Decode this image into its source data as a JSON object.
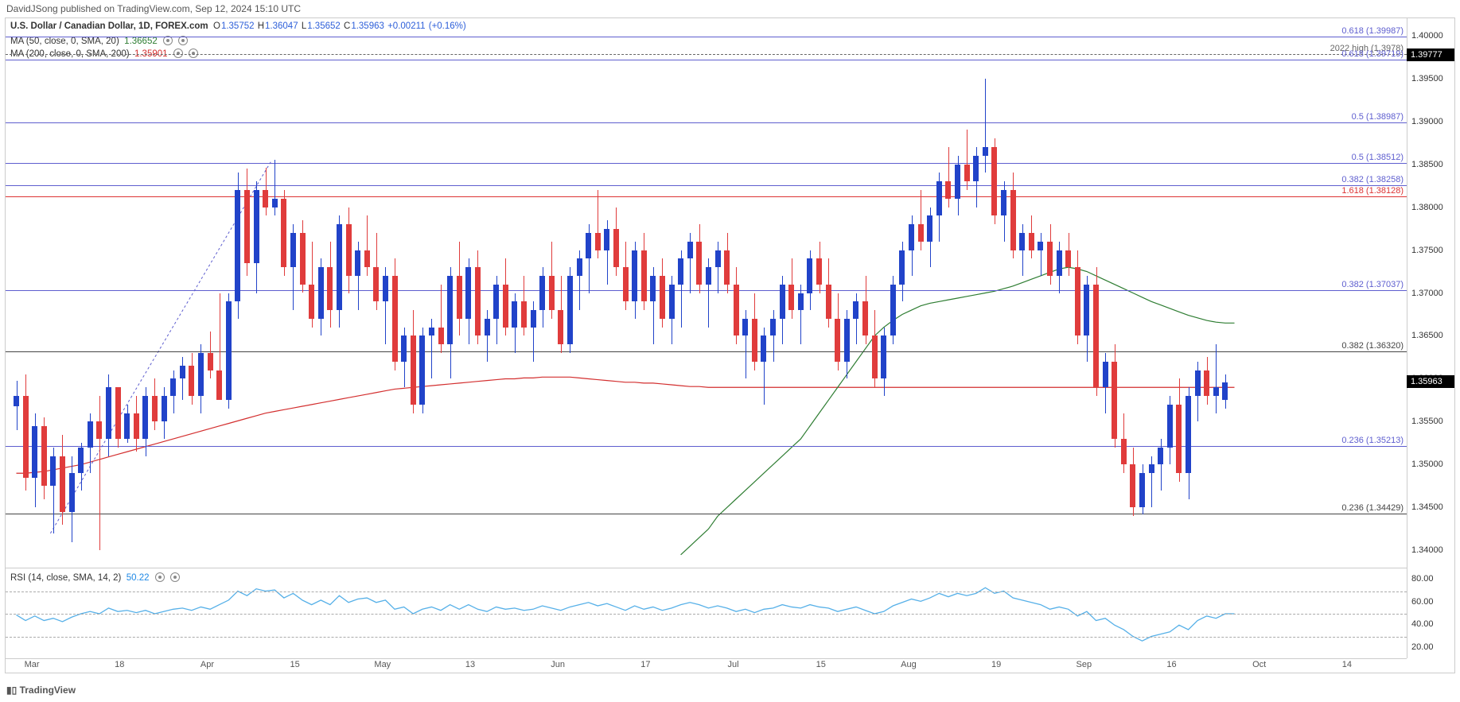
{
  "header": "DavidJSong published on TradingView.com, Sep 12, 2024 15:10 UTC",
  "footer": "TradingView",
  "symbol_line": {
    "name": "U.S. Dollar / Canadian Dollar, 1D, FOREX.com",
    "O_lbl": "O",
    "O": "1.35752",
    "H_lbl": "H",
    "H": "1.36047",
    "L_lbl": "L",
    "L": "1.35652",
    "C_lbl": "C",
    "C": "1.35963",
    "chg": "+0.00211",
    "chg_pct": "(+0.16%)",
    "ohlc_color": "#2d5fd9"
  },
  "ma50": {
    "text": "MA (50, close, 0, SMA, 20)",
    "val": "1.36652",
    "color": "#2e7d32"
  },
  "ma200": {
    "text": "MA (200, close, 0, SMA, 200)",
    "val": "1.35901",
    "color": "#d32f2f"
  },
  "rsi_legend": {
    "text": "RSI (14, close, SMA, 14, 2)",
    "val": "50.22",
    "color": "#1e88e5"
  },
  "price_chart": {
    "y_min": 1.338,
    "y_max": 1.402,
    "y_ticks": [
      "1.40000",
      "1.39500",
      "1.39000",
      "1.38500",
      "1.38000",
      "1.37500",
      "1.37000",
      "1.36500",
      "1.36000",
      "1.35500",
      "1.35000",
      "1.34500",
      "1.34000"
    ],
    "x_ticks": [
      "Mar",
      "18",
      "Apr",
      "15",
      "May",
      "13",
      "Jun",
      "17",
      "Jul",
      "15",
      "Aug",
      "19",
      "Sep",
      "16",
      "Oct",
      "14"
    ],
    "h_lines": [
      {
        "v": 1.39987,
        "c": "#5e5ecf",
        "lbl": "0.618 (1.39987)",
        "lc": "#5e5ecf"
      },
      {
        "v": 1.3978,
        "c": "#666",
        "dash": true,
        "lbl": "2022 high (1.3978)",
        "lc": "#666"
      },
      {
        "v": 1.39719,
        "c": "#5e5ecf",
        "lbl": "0.618 (1.39719)",
        "lc": "#5e5ecf"
      },
      {
        "v": 1.38987,
        "c": "#5e5ecf",
        "lbl": "0.5 (1.38987)",
        "lc": "#5e5ecf"
      },
      {
        "v": 1.38512,
        "c": "#5e5ecf",
        "lbl": "0.5 (1.38512)",
        "lc": "#5e5ecf"
      },
      {
        "v": 1.38258,
        "c": "#5e5ecf",
        "lbl": "0.382 (1.38258)",
        "lc": "#5e5ecf"
      },
      {
        "v": 1.38128,
        "c": "#d33",
        "lbl": "1.618 (1.38128)",
        "lc": "#d33"
      },
      {
        "v": 1.37037,
        "c": "#5e5ecf",
        "lbl": "0.382 (1.37037)",
        "lc": "#5e5ecf"
      },
      {
        "v": 1.3632,
        "c": "#444",
        "lbl": "0.382 (1.36320)",
        "lc": "#444"
      },
      {
        "v": 1.35213,
        "c": "#5e5ecf",
        "lbl": "0.236 (1.35213)",
        "lc": "#5e5ecf"
      },
      {
        "v": 1.34429,
        "c": "#444",
        "lbl": "0.236 (1.34429)",
        "lc": "#444"
      }
    ],
    "price_tag": "1.35963",
    "candle_up_color": "#2143c9",
    "candle_dn_color": "#e03c3c",
    "candle_width": 7,
    "candles": [
      [
        1.3568,
        1.3598,
        1.354,
        1.358
      ],
      [
        1.358,
        1.3605,
        1.347,
        1.3485
      ],
      [
        1.3485,
        1.356,
        1.345,
        1.3545
      ],
      [
        1.3545,
        1.3555,
        1.346,
        1.3475
      ],
      [
        1.3475,
        1.352,
        1.342,
        1.351
      ],
      [
        1.351,
        1.3535,
        1.343,
        1.3445
      ],
      [
        1.3445,
        1.351,
        1.341,
        1.349
      ],
      [
        1.349,
        1.3525,
        1.347,
        1.352
      ],
      [
        1.352,
        1.356,
        1.349,
        1.355
      ],
      [
        1.355,
        1.358,
        1.34,
        1.353
      ],
      [
        1.353,
        1.3605,
        1.351,
        1.359
      ],
      [
        1.359,
        1.3545,
        1.352,
        1.353
      ],
      [
        1.353,
        1.357,
        1.3525,
        1.356
      ],
      [
        1.356,
        1.358,
        1.3515,
        1.353
      ],
      [
        1.353,
        1.359,
        1.351,
        1.358
      ],
      [
        1.358,
        1.36,
        1.354,
        1.355
      ],
      [
        1.355,
        1.359,
        1.353,
        1.358
      ],
      [
        1.358,
        1.361,
        1.356,
        1.36
      ],
      [
        1.36,
        1.3625,
        1.3575,
        1.3615
      ],
      [
        1.3615,
        1.363,
        1.357,
        1.358
      ],
      [
        1.358,
        1.364,
        1.356,
        1.363
      ],
      [
        1.363,
        1.3655,
        1.36,
        1.361
      ],
      [
        1.361,
        1.37,
        1.359,
        1.3575
      ],
      [
        1.3575,
        1.37,
        1.3565,
        1.369
      ],
      [
        1.369,
        1.384,
        1.367,
        1.382
      ],
      [
        1.382,
        1.3845,
        1.372,
        1.3735
      ],
      [
        1.3735,
        1.383,
        1.37,
        1.382
      ],
      [
        1.382,
        1.3846,
        1.379,
        1.38
      ],
      [
        1.38,
        1.3855,
        1.379,
        1.381
      ],
      [
        1.381,
        1.382,
        1.372,
        1.373
      ],
      [
        1.373,
        1.378,
        1.368,
        1.377
      ],
      [
        1.377,
        1.3785,
        1.37,
        1.371
      ],
      [
        1.371,
        1.376,
        1.366,
        1.367
      ],
      [
        1.367,
        1.374,
        1.365,
        1.373
      ],
      [
        1.373,
        1.376,
        1.366,
        1.368
      ],
      [
        1.368,
        1.379,
        1.366,
        1.378
      ],
      [
        1.378,
        1.38,
        1.37,
        1.372
      ],
      [
        1.372,
        1.376,
        1.368,
        1.375
      ],
      [
        1.375,
        1.379,
        1.372,
        1.373
      ],
      [
        1.373,
        1.377,
        1.368,
        1.369
      ],
      [
        1.369,
        1.373,
        1.364,
        1.372
      ],
      [
        1.372,
        1.374,
        1.361,
        1.362
      ],
      [
        1.362,
        1.366,
        1.359,
        1.365
      ],
      [
        1.365,
        1.368,
        1.356,
        1.357
      ],
      [
        1.357,
        1.366,
        1.356,
        1.365
      ],
      [
        1.365,
        1.367,
        1.36,
        1.366
      ],
      [
        1.366,
        1.371,
        1.363,
        1.364
      ],
      [
        1.364,
        1.373,
        1.36,
        1.372
      ],
      [
        1.372,
        1.376,
        1.365,
        1.367
      ],
      [
        1.367,
        1.374,
        1.364,
        1.373
      ],
      [
        1.373,
        1.375,
        1.364,
        1.365
      ],
      [
        1.365,
        1.368,
        1.362,
        1.367
      ],
      [
        1.367,
        1.372,
        1.364,
        1.371
      ],
      [
        1.371,
        1.374,
        1.365,
        1.366
      ],
      [
        1.366,
        1.37,
        1.363,
        1.369
      ],
      [
        1.369,
        1.372,
        1.365,
        1.366
      ],
      [
        1.366,
        1.369,
        1.362,
        1.368
      ],
      [
        1.368,
        1.373,
        1.366,
        1.372
      ],
      [
        1.372,
        1.376,
        1.367,
        1.368
      ],
      [
        1.368,
        1.372,
        1.363,
        1.364
      ],
      [
        1.364,
        1.373,
        1.363,
        1.372
      ],
      [
        1.372,
        1.375,
        1.368,
        1.374
      ],
      [
        1.374,
        1.378,
        1.37,
        1.377
      ],
      [
        1.377,
        1.382,
        1.374,
        1.375
      ],
      [
        1.375,
        1.3785,
        1.371,
        1.3775
      ],
      [
        1.3775,
        1.38,
        1.372,
        1.373
      ],
      [
        1.373,
        1.376,
        1.368,
        1.369
      ],
      [
        1.369,
        1.376,
        1.367,
        1.375
      ],
      [
        1.375,
        1.377,
        1.368,
        1.369
      ],
      [
        1.369,
        1.373,
        1.364,
        1.372
      ],
      [
        1.372,
        1.374,
        1.366,
        1.367
      ],
      [
        1.367,
        1.372,
        1.364,
        1.371
      ],
      [
        1.371,
        1.375,
        1.366,
        1.374
      ],
      [
        1.374,
        1.377,
        1.37,
        1.376
      ],
      [
        1.376,
        1.378,
        1.37,
        1.371
      ],
      [
        1.371,
        1.374,
        1.366,
        1.373
      ],
      [
        1.373,
        1.376,
        1.37,
        1.375
      ],
      [
        1.375,
        1.377,
        1.37,
        1.371
      ],
      [
        1.371,
        1.373,
        1.364,
        1.365
      ],
      [
        1.365,
        1.368,
        1.36,
        1.367
      ],
      [
        1.367,
        1.37,
        1.361,
        1.362
      ],
      [
        1.362,
        1.366,
        1.357,
        1.365
      ],
      [
        1.365,
        1.368,
        1.362,
        1.367
      ],
      [
        1.367,
        1.372,
        1.364,
        1.371
      ],
      [
        1.371,
        1.374,
        1.367,
        1.368
      ],
      [
        1.368,
        1.371,
        1.364,
        1.37
      ],
      [
        1.37,
        1.375,
        1.368,
        1.374
      ],
      [
        1.374,
        1.376,
        1.37,
        1.371
      ],
      [
        1.371,
        1.374,
        1.366,
        1.367
      ],
      [
        1.367,
        1.37,
        1.361,
        1.362
      ],
      [
        1.362,
        1.368,
        1.36,
        1.367
      ],
      [
        1.367,
        1.37,
        1.364,
        1.369
      ],
      [
        1.369,
        1.372,
        1.364,
        1.365
      ],
      [
        1.365,
        1.368,
        1.359,
        1.36
      ],
      [
        1.36,
        1.366,
        1.358,
        1.365
      ],
      [
        1.365,
        1.372,
        1.364,
        1.371
      ],
      [
        1.371,
        1.376,
        1.369,
        1.375
      ],
      [
        1.375,
        1.379,
        1.372,
        1.378
      ],
      [
        1.378,
        1.382,
        1.375,
        1.376
      ],
      [
        1.376,
        1.38,
        1.373,
        1.379
      ],
      [
        1.379,
        1.384,
        1.376,
        1.383
      ],
      [
        1.383,
        1.387,
        1.38,
        1.381
      ],
      [
        1.381,
        1.386,
        1.379,
        1.385
      ],
      [
        1.385,
        1.389,
        1.382,
        1.383
      ],
      [
        1.383,
        1.387,
        1.38,
        1.386
      ],
      [
        1.386,
        1.395,
        1.384,
        1.387
      ],
      [
        1.387,
        1.388,
        1.378,
        1.379
      ],
      [
        1.379,
        1.383,
        1.376,
        1.382
      ],
      [
        1.382,
        1.384,
        1.374,
        1.375
      ],
      [
        1.375,
        1.378,
        1.372,
        1.377
      ],
      [
        1.377,
        1.379,
        1.374,
        1.375
      ],
      [
        1.375,
        1.377,
        1.372,
        1.376
      ],
      [
        1.376,
        1.378,
        1.371,
        1.372
      ],
      [
        1.372,
        1.376,
        1.37,
        1.375
      ],
      [
        1.375,
        1.377,
        1.372,
        1.373
      ],
      [
        1.373,
        1.375,
        1.364,
        1.365
      ],
      [
        1.365,
        1.372,
        1.362,
        1.371
      ],
      [
        1.371,
        1.373,
        1.358,
        1.359
      ],
      [
        1.359,
        1.363,
        1.356,
        1.362
      ],
      [
        1.362,
        1.364,
        1.352,
        1.353
      ],
      [
        1.353,
        1.356,
        1.349,
        1.35
      ],
      [
        1.35,
        1.352,
        1.344,
        1.345
      ],
      [
        1.345,
        1.35,
        1.3442,
        1.349
      ],
      [
        1.349,
        1.351,
        1.345,
        1.35
      ],
      [
        1.35,
        1.353,
        1.347,
        1.352
      ],
      [
        1.352,
        1.358,
        1.35,
        1.357
      ],
      [
        1.357,
        1.36,
        1.348,
        1.349
      ],
      [
        1.349,
        1.359,
        1.346,
        1.358
      ],
      [
        1.358,
        1.362,
        1.355,
        1.361
      ],
      [
        1.361,
        1.3625,
        1.357,
        1.358
      ],
      [
        1.358,
        1.364,
        1.356,
        1.359
      ],
      [
        1.3575,
        1.3605,
        1.3565,
        1.3596
      ]
    ],
    "ma50_color": "#2e7d32",
    "ma50_series": [
      1.3395,
      1.3405,
      1.3415,
      1.3425,
      1.344,
      1.345,
      1.346,
      1.347,
      1.348,
      1.349,
      1.35,
      1.351,
      1.352,
      1.353,
      1.3545,
      1.356,
      1.3575,
      1.359,
      1.3605,
      1.362,
      1.3635,
      1.365,
      1.366,
      1.3668,
      1.3675,
      1.368,
      1.3685,
      1.3688,
      1.369,
      1.3692,
      1.3694,
      1.3696,
      1.3698,
      1.37,
      1.3702,
      1.3705,
      1.3708,
      1.3712,
      1.3716,
      1.372,
      1.3724,
      1.3728,
      1.373,
      1.3728,
      1.3725,
      1.372,
      1.3715,
      1.371,
      1.3705,
      1.37,
      1.3695,
      1.369,
      1.3686,
      1.3682,
      1.3678,
      1.3674,
      1.3671,
      1.3668,
      1.3666,
      1.3665,
      1.3665
    ],
    "ma50_start_index": 72,
    "ma200_color": "#d32f2f",
    "ma200_series": [
      1.349,
      1.349,
      1.3491,
      1.3492,
      1.3494,
      1.3496,
      1.3498,
      1.35,
      1.3503,
      1.3506,
      1.3509,
      1.3512,
      1.3515,
      1.3518,
      1.3521,
      1.3524,
      1.3527,
      1.353,
      1.3533,
      1.3536,
      1.3539,
      1.3542,
      1.3545,
      1.3548,
      1.3551,
      1.3554,
      1.3557,
      1.356,
      1.3562,
      1.3564,
      1.3566,
      1.3568,
      1.357,
      1.3572,
      1.3574,
      1.3576,
      1.3578,
      1.358,
      1.3582,
      1.3584,
      1.3586,
      1.3588,
      1.3589,
      1.359,
      1.3591,
      1.3592,
      1.3593,
      1.3594,
      1.3595,
      1.3596,
      1.3597,
      1.3598,
      1.3599,
      1.36,
      1.36,
      1.3601,
      1.3601,
      1.3602,
      1.3602,
      1.3602,
      1.3602,
      1.3601,
      1.36,
      1.3599,
      1.3598,
      1.3597,
      1.3596,
      1.3596,
      1.3595,
      1.3595,
      1.3594,
      1.3593,
      1.3592,
      1.3591,
      1.3591,
      1.359,
      1.359,
      1.359,
      1.359,
      1.359,
      1.359,
      1.359,
      1.359,
      1.359,
      1.359,
      1.359,
      1.359,
      1.359,
      1.359,
      1.359,
      1.359,
      1.359,
      1.359,
      1.359,
      1.359,
      1.359,
      1.359,
      1.359,
      1.359,
      1.359,
      1.359,
      1.359,
      1.359,
      1.359,
      1.359,
      1.359,
      1.359,
      1.359,
      1.359,
      1.359,
      1.359,
      1.359,
      1.359,
      1.359,
      1.359,
      1.359,
      1.359,
      1.359,
      1.359,
      1.359,
      1.359,
      1.359,
      1.359,
      1.359,
      1.359,
      1.359,
      1.359,
      1.359,
      1.359,
      1.359,
      1.359,
      1.359,
      1.359
    ],
    "ma200_start_index": 0,
    "diag_line": {
      "x1_idx": 4,
      "y1": 1.342,
      "x2_idx": 28,
      "y2": 1.3855,
      "color": "#5e5ecf"
    }
  },
  "rsi_chart": {
    "y_min": 10,
    "y_max": 90,
    "ticks": [
      "80.00",
      "60.00",
      "40.00",
      "20.00"
    ],
    "dashed": [
      70,
      50,
      30
    ],
    "color": "#56b0e8",
    "series": [
      49,
      44,
      48,
      44,
      46,
      43,
      47,
      50,
      52,
      50,
      55,
      52,
      53,
      51,
      53,
      50,
      52,
      54,
      55,
      53,
      56,
      54,
      58,
      62,
      70,
      66,
      72,
      70,
      71,
      64,
      68,
      62,
      58,
      62,
      58,
      66,
      60,
      63,
      64,
      60,
      62,
      54,
      56,
      50,
      54,
      56,
      53,
      58,
      54,
      58,
      54,
      52,
      56,
      54,
      55,
      53,
      54,
      57,
      55,
      53,
      56,
      58,
      60,
      57,
      59,
      56,
      53,
      57,
      54,
      56,
      53,
      55,
      58,
      60,
      58,
      55,
      57,
      55,
      52,
      54,
      51,
      54,
      55,
      58,
      56,
      55,
      58,
      56,
      55,
      52,
      54,
      56,
      53,
      50,
      52,
      57,
      60,
      63,
      61,
      64,
      68,
      65,
      68,
      66,
      68,
      73,
      68,
      70,
      64,
      62,
      60,
      58,
      54,
      56,
      54,
      48,
      52,
      44,
      46,
      40,
      36,
      30,
      26,
      30,
      32,
      34,
      40,
      36,
      44,
      48,
      46,
      50,
      50
    ]
  }
}
